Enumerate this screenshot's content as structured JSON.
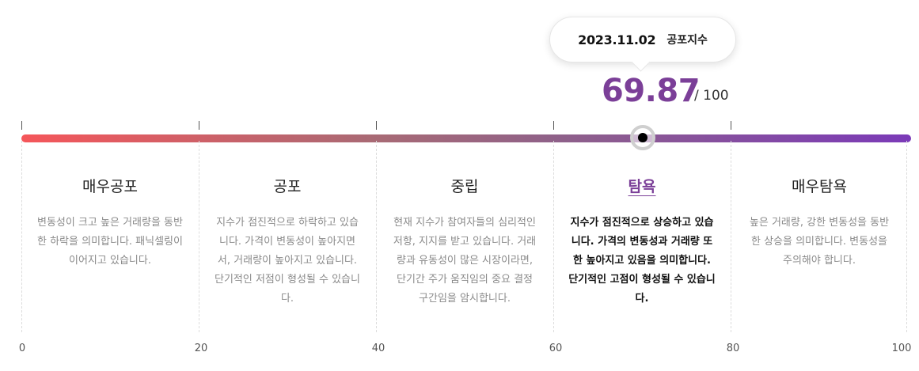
{
  "tooltip": {
    "date": "2023.11.02",
    "label": "공포지수"
  },
  "score": {
    "value": "69.87",
    "max": "/ 100",
    "level": 69.87
  },
  "gauge": {
    "gradient_colors": [
      "#f5565a",
      "#a86a75",
      "#8f6189",
      "#7b3ab8"
    ],
    "accent": "#7b3f98"
  },
  "segments": [
    {
      "title": "매우공포",
      "desc": "변동성이 크고 높은 거래량을 동반한 하락을 의미합니다. 패닉셀링이 이어지고 있습니다.",
      "active": false
    },
    {
      "title": "공포",
      "desc": "지수가 점진적으로 하락하고 있습니다. 가격이 변동성이 높아지면서, 거래량이 높아지고 있습니다. 단기적인 저점이 형성될 수 있습니다.",
      "active": false
    },
    {
      "title": "중립",
      "desc": "현재 지수가 참여자들의 심리적인 저항, 지지를 받고 있습니다. 거래량과 유동성이 많은 시장이라면, 단기간 주가 움직임의 중요 결정 구간임을 암시합니다.",
      "active": false
    },
    {
      "title": "탐욕",
      "desc": "지수가 점진적으로 상승하고 있습니다. 가격의 변동성과 거래량 또한 높아지고 있음을 의미합니다. 단기적인 고점이 형성될 수 있습니다.",
      "active": true
    },
    {
      "title": "매우탐욕",
      "desc": "높은 거래량, 강한 변동성을 동반한 상승을 의미합니다. 변동성을 주의해야 합니다.",
      "active": false
    }
  ],
  "axis": [
    "0",
    "20",
    "40",
    "60",
    "80",
    "100"
  ]
}
